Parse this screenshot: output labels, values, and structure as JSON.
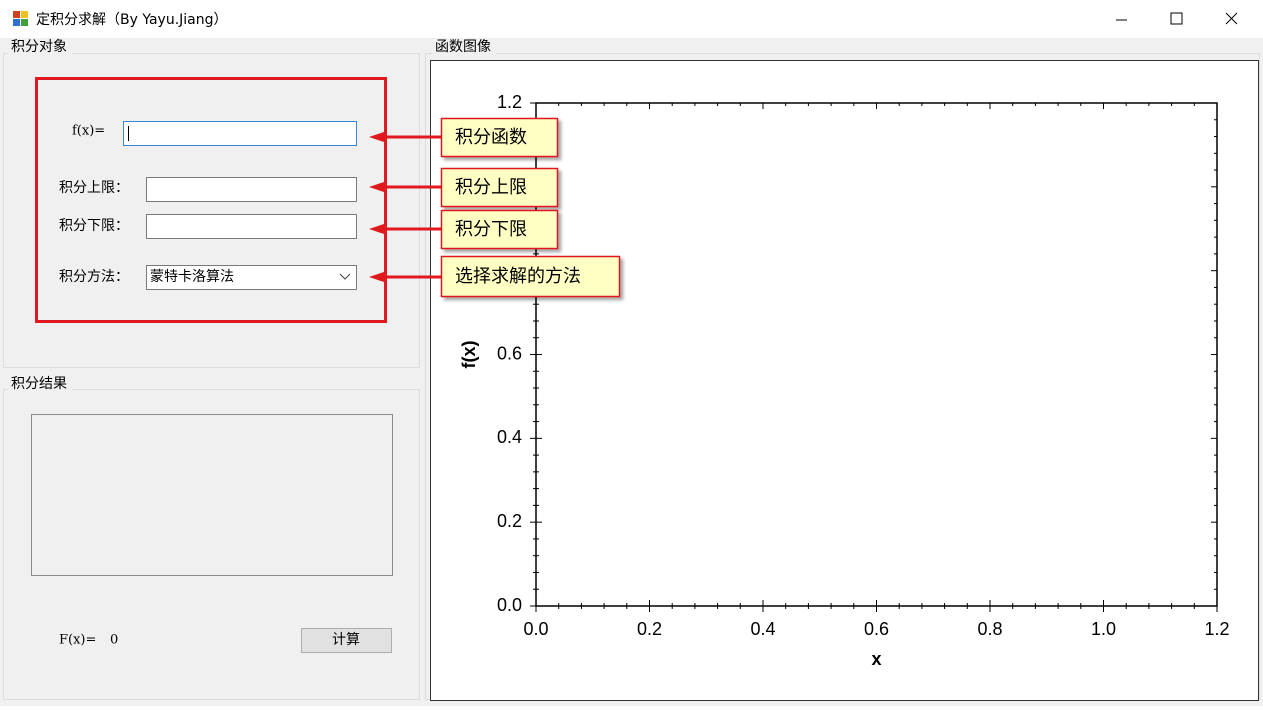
{
  "window": {
    "title": "定积分求解（By Yayu.Jiang）"
  },
  "input_group": {
    "title": "积分对象",
    "function_label": "f(x)=",
    "upper_label": "积分上限：",
    "lower_label": "积分下限：",
    "method_label": "积分方法：",
    "method_value": "蒙特卡洛算法"
  },
  "callouts": [
    "积分函数",
    "积分上限",
    "积分下限",
    "选择求解的方法"
  ],
  "result_group": {
    "title": "积分结果",
    "result_label": "F(x)=",
    "result_value": 0,
    "button": "计算"
  },
  "plot_group": {
    "title": "函数图像"
  },
  "chart_data": {
    "type": "line",
    "x_label": "x",
    "y_label": "f(x)",
    "xlim": [
      0,
      1.2
    ],
    "ylim": [
      0,
      1.2
    ],
    "xticks": [
      {
        "value": 0,
        "label": "0.0"
      },
      0.2,
      0.4,
      0.6,
      0.8,
      {
        "value": 1,
        "label": "1.0"
      },
      1.2
    ],
    "yticks": [
      {
        "value": 0,
        "label": "0.0"
      },
      0.2,
      0.4,
      0.6,
      0.8,
      {
        "value": 1,
        "label": "1.0"
      },
      1.2
    ]
  }
}
